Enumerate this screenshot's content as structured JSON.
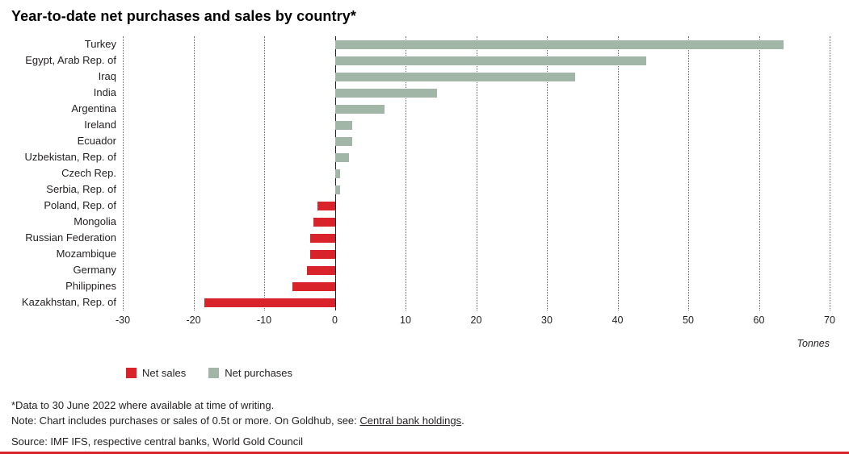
{
  "title": "Year-to-date net purchases and sales by country*",
  "legend": {
    "net_sales": "Net sales",
    "net_purchases": "Net purchases"
  },
  "colors": {
    "net_sales": "#d8232a",
    "net_purchases": "#a2b6a8",
    "footer_rule": "#d8232a",
    "gridline": "#6b6b6b",
    "text": "#231f20"
  },
  "footnotes": {
    "line1": "*Data to 30 June 2022 where available at time of writing.",
    "note_prefix": "Note: Chart includes purchases or sales of 0.5t or more. On Goldhub, see: ",
    "note_link": "Central bank holdings",
    "note_suffix": ".",
    "source": "Source: IMF IFS, respective central banks, World Gold Council"
  },
  "chart_data": {
    "type": "bar",
    "orientation": "horizontal",
    "title": "Year-to-date net purchases and sales by country*",
    "unit_label": "Tonnes",
    "xlabel": "Tonnes",
    "ylabel": "",
    "xlim": [
      -30,
      70
    ],
    "xticks": [
      -30,
      -20,
      -10,
      0,
      10,
      20,
      30,
      40,
      50,
      60,
      70
    ],
    "grid": "dotted-vertical",
    "legend_position": "bottom-left",
    "categories": [
      "Turkey",
      "Egypt, Arab Rep. of",
      "Iraq",
      "India",
      "Argentina",
      "Ireland",
      "Ecuador",
      "Uzbekistan, Rep. of",
      "Czech Rep.",
      "Serbia, Rep. of",
      "Poland, Rep. of",
      "Mongolia",
      "Russian Federation",
      "Mozambique",
      "Germany",
      "Philippines",
      "Kazakhstan, Rep. of"
    ],
    "values": [
      63.5,
      44,
      34,
      14.5,
      7,
      2.5,
      2.5,
      2,
      0.7,
      0.7,
      -2.5,
      -3,
      -3.5,
      -3.5,
      -4,
      -6,
      -18.5
    ],
    "series": [
      {
        "name": "Net purchases",
        "rule": "positive values",
        "color": "#a2b6a8"
      },
      {
        "name": "Net sales",
        "rule": "negative values",
        "color": "#d8232a"
      }
    ]
  }
}
